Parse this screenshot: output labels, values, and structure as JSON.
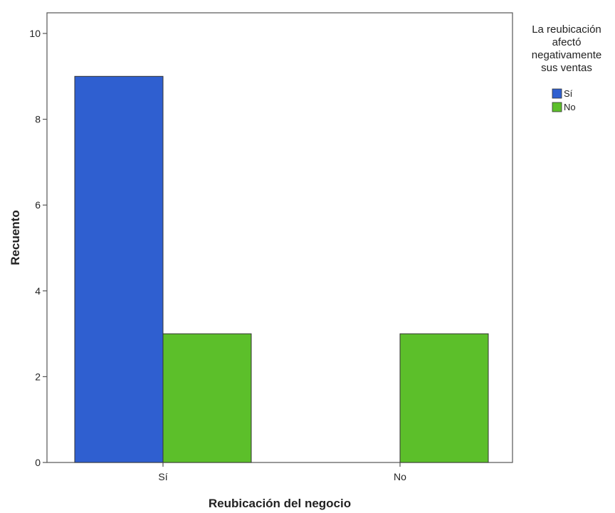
{
  "chart_data": {
    "type": "bar",
    "title": "",
    "xlabel": "Reubicación del negocio",
    "ylabel": "Recuento",
    "categories": [
      "Sí",
      "No"
    ],
    "series": [
      {
        "name": "Sí",
        "values": [
          9,
          0
        ],
        "color": "#2f5fd0"
      },
      {
        "name": "No",
        "values": [
          3,
          3
        ],
        "color": "#5cbf2a"
      }
    ],
    "ylim": [
      0,
      10.5
    ],
    "yticks": [
      0,
      2,
      4,
      6,
      8,
      10
    ],
    "grid": false,
    "legend": {
      "title_lines": [
        "La reubicación",
        "afectó",
        "negativamente",
        "sus ventas"
      ],
      "placement": "right"
    }
  }
}
